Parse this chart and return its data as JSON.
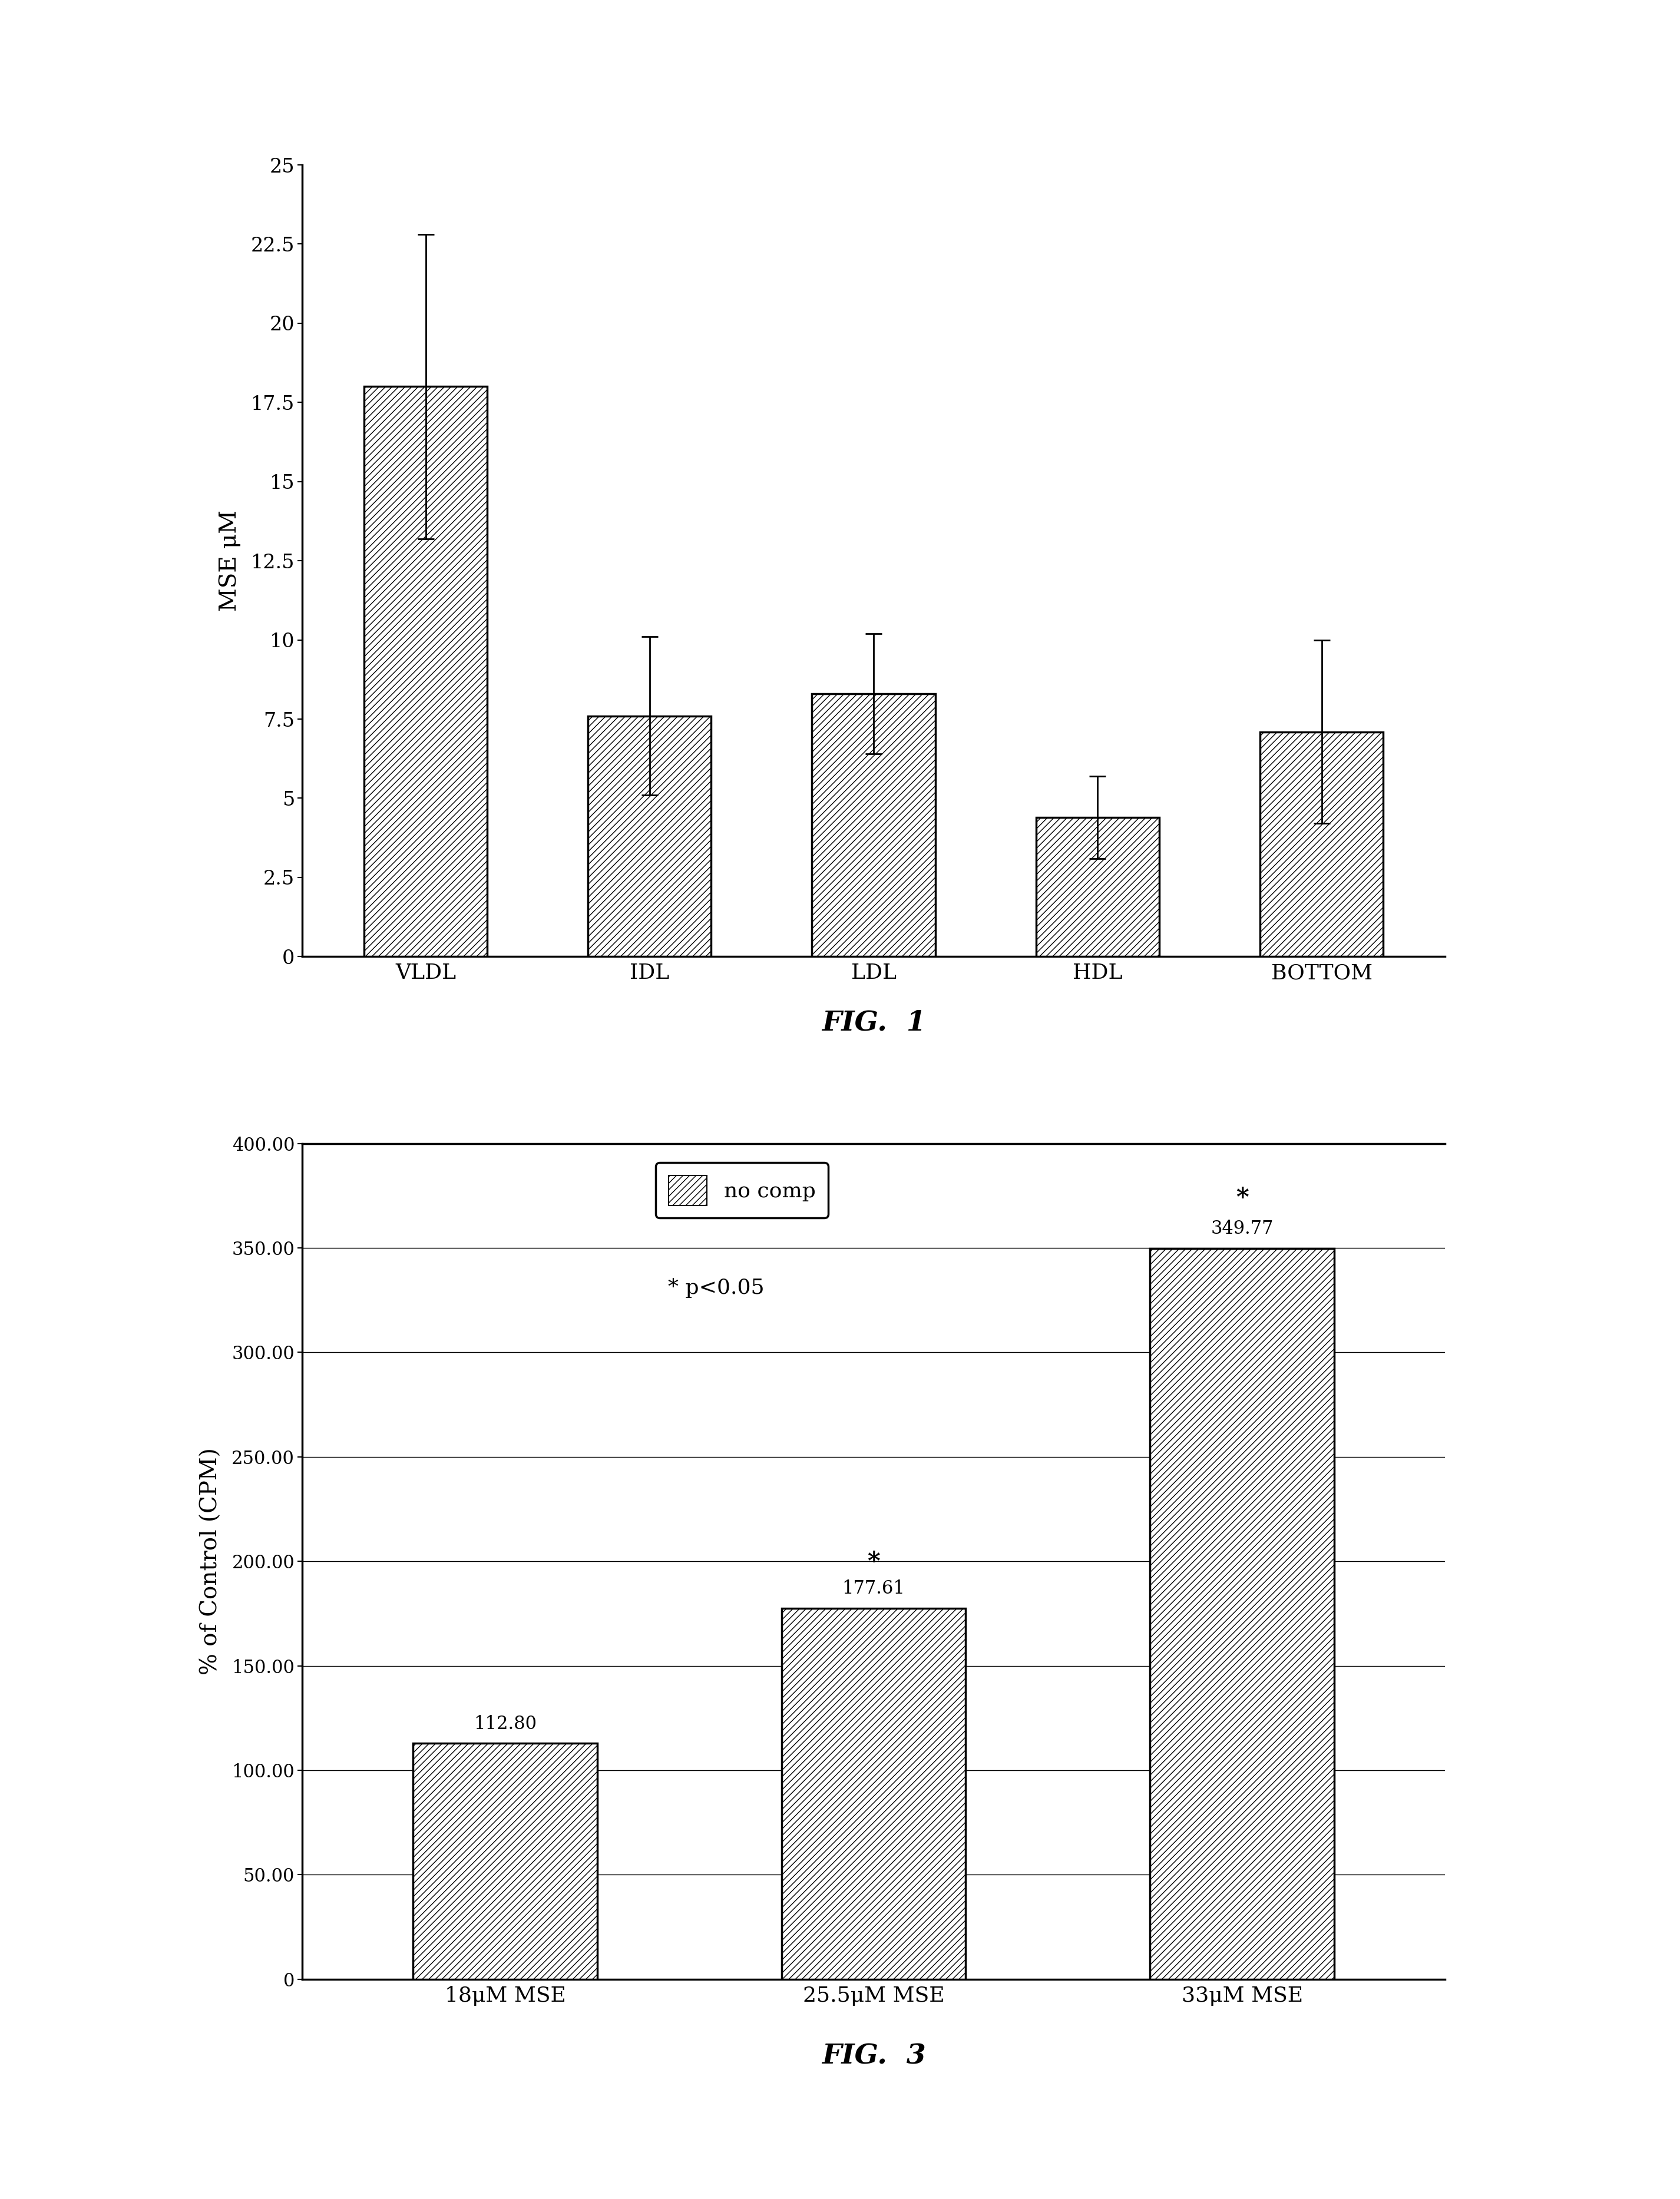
{
  "fig1": {
    "categories": [
      "VLDL",
      "IDL",
      "LDL",
      "HDL",
      "BOTTOM"
    ],
    "values": [
      18.0,
      7.6,
      8.3,
      4.4,
      7.1
    ],
    "errors": [
      4.8,
      2.5,
      1.9,
      1.3,
      2.9
    ],
    "ylabel": "MSE μM",
    "ylim": [
      0,
      25
    ],
    "yticks": [
      0,
      2.5,
      5.0,
      7.5,
      10.0,
      12.5,
      15.0,
      17.5,
      20.0,
      22.5,
      25.0
    ],
    "ytick_labels": [
      "0",
      "2.5",
      "5",
      "7.5",
      "10",
      "12.5",
      "15",
      "17.5",
      "20",
      "22.5",
      "25"
    ],
    "title": "FIG. 1"
  },
  "fig3": {
    "categories": [
      "18μM MSE",
      "25.5μM MSE",
      "33μM MSE"
    ],
    "values": [
      112.8,
      177.61,
      349.77
    ],
    "ylabel": "% of Control (CPM)",
    "ylim": [
      0,
      400
    ],
    "yticks": [
      0,
      50.0,
      100.0,
      150.0,
      200.0,
      250.0,
      300.0,
      350.0,
      400.0
    ],
    "ytick_labels": [
      "0",
      "50.00",
      "100.00",
      "150.00",
      "200.00",
      "250.00",
      "300.00",
      "350.00",
      "400.00"
    ],
    "title": "FIG. 3",
    "legend_label": "no comp",
    "annotation": "* p<0.05",
    "significance": [
      false,
      true,
      true
    ],
    "bar_labels": [
      "112.80",
      "177.61",
      "349.77"
    ]
  },
  "hatch_pattern": "///",
  "bar_color": "white",
  "edge_color": "black",
  "background_color": "white"
}
